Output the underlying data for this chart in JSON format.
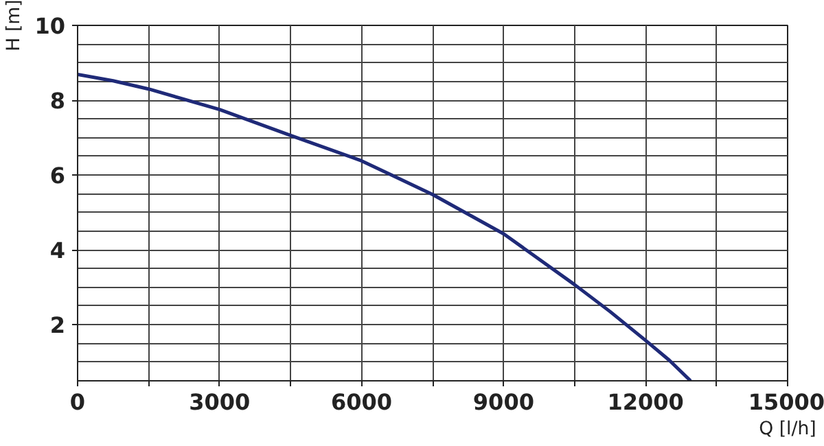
{
  "chart_data": {
    "type": "line",
    "xlabel": "Q [l/h]",
    "ylabel": "H [m]",
    "x": [
      0,
      750,
      1500,
      3000,
      4500,
      6000,
      7500,
      9000,
      10500,
      11250,
      12000,
      12500,
      12950
    ],
    "series": [
      {
        "color": "#1f2a78",
        "values": [
          8.69,
          8.52,
          8.3,
          7.75,
          7.06,
          6.38,
          5.48,
          4.43,
          3.07,
          2.35,
          1.58,
          1.05,
          0.5
        ]
      }
    ],
    "xlim": [
      0,
      15000
    ],
    "ylim": [
      0.5,
      10
    ],
    "xticks": [
      0,
      {
        "value": 1500,
        "label": null
      },
      3000,
      {
        "value": 4500,
        "label": null
      },
      6000,
      {
        "value": 7500,
        "label": null
      },
      9000,
      {
        "value": 10500,
        "label": null
      },
      12000,
      {
        "value": 13500,
        "label": null
      },
      15000
    ],
    "yticks": [
      2,
      4,
      6,
      8,
      10
    ],
    "grid": true,
    "marker": "none",
    "line_style": "solid"
  }
}
